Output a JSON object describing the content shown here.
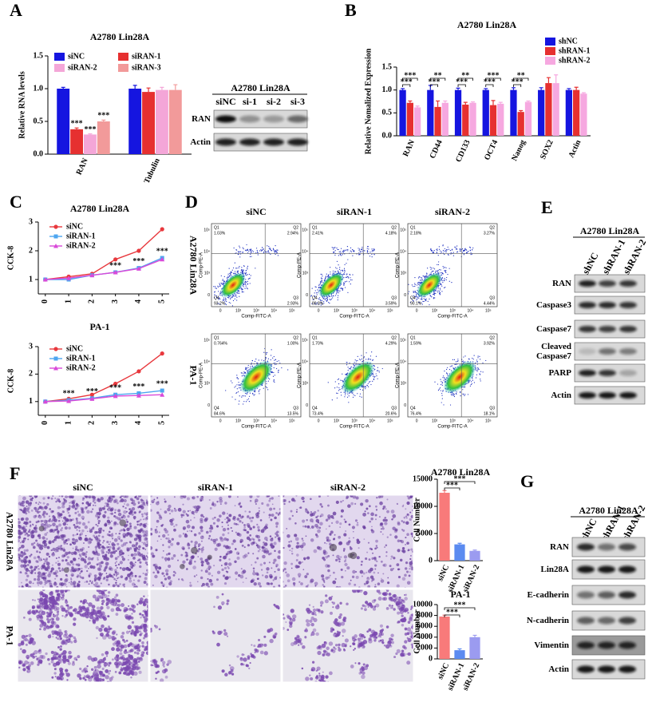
{
  "panel_labels": [
    "A",
    "B",
    "C",
    "D",
    "E",
    "F",
    "G"
  ],
  "chart_data": [
    {
      "type": "bar",
      "title": "A2780 Lin28A",
      "y_label": "Relative RNA levels",
      "categories": [
        "RAN",
        "Tubulin"
      ],
      "series": [
        {
          "name": "siNC",
          "color": "#1515e0",
          "values": [
            1.0,
            1.0
          ],
          "errors": [
            0.02,
            0.05
          ]
        },
        {
          "name": "siRAN-1",
          "color": "#e63030",
          "values": [
            0.38,
            0.95
          ],
          "errors": [
            0.02,
            0.06
          ]
        },
        {
          "name": "siRAN-2",
          "color": "#f4a6d8",
          "values": [
            0.3,
            0.98
          ],
          "errors": [
            0.01,
            0.04
          ]
        },
        {
          "name": "siRAN-3",
          "color": "#f29a9a",
          "values": [
            0.5,
            0.98
          ],
          "errors": [
            0.02,
            0.08
          ]
        }
      ],
      "ylim": [
        0,
        1.5
      ],
      "yticks": [
        {
          "value": 0,
          "label": "0.0"
        },
        0.5,
        {
          "value": 1,
          "label": "1.0"
        },
        1.5
      ],
      "annotations": [
        "***",
        "***",
        "***"
      ]
    },
    {
      "type": "bar",
      "title": "A2780 Lin28A",
      "y_label": "Relative Nomalized Expression",
      "categories": [
        "RAN",
        "CD44",
        "CD133",
        "OCT4",
        "Nanog",
        "SOX2",
        "Actin"
      ],
      "series": [
        {
          "name": "shNC",
          "color": "#1515e0",
          "values": [
            1.0,
            1.0,
            1.0,
            1.0,
            1.0,
            1.0,
            1.0
          ],
          "errors": [
            0.03,
            0.1,
            0.04,
            0.03,
            0.05,
            0.05,
            0.03
          ]
        },
        {
          "name": "shRAN-1",
          "color": "#e63030",
          "values": [
            0.72,
            0.63,
            0.68,
            0.67,
            0.52,
            1.15,
            1.0
          ],
          "errors": [
            0.04,
            0.13,
            0.05,
            0.1,
            0.03,
            0.12,
            0.06
          ]
        },
        {
          "name": "shRAN-2",
          "color": "#f6a8e0",
          "values": [
            0.62,
            0.72,
            0.72,
            0.7,
            0.74,
            1.15,
            0.92
          ],
          "errors": [
            0.03,
            0.04,
            0.02,
            0.03,
            0.02,
            0.18,
            0.02
          ]
        }
      ],
      "ylim": [
        0,
        1.5
      ],
      "yticks": [
        {
          "value": 0,
          "label": "0.0"
        },
        0.5,
        {
          "value": 1,
          "label": "1.0"
        },
        1.5
      ],
      "annotations": [
        "***",
        "***",
        "**",
        "***",
        "**",
        "***",
        "***",
        "***",
        "**",
        "***"
      ]
    },
    {
      "type": "line",
      "title": "A2780 Lin28A",
      "y_label": "CCK-8",
      "x": [
        0,
        1,
        2,
        3,
        4,
        5
      ],
      "xlim": [
        -0.3,
        5.3
      ],
      "xticks": [
        0,
        1,
        2,
        3,
        4,
        5
      ],
      "ylim": [
        0.5,
        3
      ],
      "yticks": [
        1,
        2,
        3
      ],
      "series": [
        {
          "name": "siNC",
          "color": "#e8383d",
          "values": [
            1.0,
            1.1,
            1.2,
            1.7,
            2.0,
            2.75
          ]
        },
        {
          "name": "siRAN-1",
          "color": "#4da6f0",
          "values": [
            1.0,
            1.0,
            1.15,
            1.25,
            1.4,
            1.75
          ]
        },
        {
          "name": "siRAN-2",
          "color": "#d94ad9",
          "values": [
            1.0,
            1.05,
            1.15,
            1.25,
            1.38,
            1.7
          ]
        }
      ],
      "annotations": [
        "***",
        "***",
        "***"
      ]
    },
    {
      "type": "line",
      "title": "PA-1",
      "y_label": "CCK-8",
      "x": [
        0,
        1,
        2,
        3,
        4,
        5
      ],
      "xlim": [
        -0.3,
        5.3
      ],
      "xticks": [
        0,
        1,
        2,
        3,
        4,
        5
      ],
      "ylim": [
        0.5,
        3
      ],
      "yticks": [
        1,
        2,
        3
      ],
      "series": [
        {
          "name": "siNC",
          "color": "#e8383d",
          "values": [
            1.0,
            1.1,
            1.25,
            1.65,
            2.1,
            2.75
          ]
        },
        {
          "name": "siRAN-1",
          "color": "#4da6f0",
          "values": [
            1.0,
            1.05,
            1.12,
            1.25,
            1.3,
            1.4
          ]
        },
        {
          "name": "siRAN-2",
          "color": "#d94ad9",
          "values": [
            1.0,
            1.02,
            1.1,
            1.2,
            1.22,
            1.25
          ]
        }
      ],
      "annotations": [
        "***",
        "***",
        "***",
        "***",
        "***"
      ]
    },
    {
      "type": "bar",
      "title": "A2780 Lin28A",
      "y_label": "Cell Number",
      "categories": [
        "siNC",
        "siRAN-1",
        "siRAN-2"
      ],
      "values": [
        12500,
        3000,
        1800
      ],
      "errors": [
        400,
        200,
        150
      ],
      "colors": [
        "#f87a7a",
        "#5b8bf0",
        "#9b9bf0"
      ],
      "ylim": [
        0,
        15000
      ],
      "yticks": [
        0,
        5000,
        10000,
        15000
      ],
      "annotations": [
        "***",
        "***"
      ]
    },
    {
      "type": "bar",
      "title": "PA-1",
      "y_label": "Cell Number",
      "categories": [
        "siNC",
        "siRAN-1",
        "siRAN-2"
      ],
      "values": [
        7800,
        1600,
        4000
      ],
      "errors": [
        250,
        250,
        350
      ],
      "colors": [
        "#f87a7a",
        "#5b8bf0",
        "#9b9bf0"
      ],
      "ylim": [
        0,
        10000
      ],
      "yticks": [
        0,
        2000,
        4000,
        6000,
        8000,
        10000
      ],
      "annotations": [
        "***",
        "***"
      ]
    }
  ],
  "blot_A": {
    "title": "A2780 Lin28A",
    "lanes": [
      "siNC",
      "si-1",
      "si-2",
      "si-3"
    ],
    "rows": [
      "RAN",
      "Actin"
    ]
  },
  "flow_D": {
    "columns": [
      "siNC",
      "siRAN-1",
      "siRAN-2"
    ],
    "rows": [
      "A2780 Lin28A",
      "PA-1"
    ],
    "x_axis": "Comp-FITC-A",
    "y_axis": "Comp-PE-A",
    "x_ticks": [
      "0",
      "10²",
      "10³",
      "10⁴",
      "10⁵"
    ],
    "y_ticks": [
      "10⁵",
      "10⁴",
      "10³",
      "0"
    ],
    "quadrant_names": [
      "Q1",
      "Q2",
      "Q3",
      "Q4"
    ],
    "percentages": [
      [
        [
          "1.03%",
          "2.94%",
          "2.93%",
          "93.2%"
        ],
        [
          "2.41%",
          "4.18%",
          "3.59%",
          "89.8%"
        ],
        [
          "2.18%",
          "3.27%",
          "4.44%",
          "90.1%"
        ]
      ],
      [
        [
          "0.764%",
          "1.00%",
          "13.5%",
          "84.6%"
        ],
        [
          "1.70%",
          "4.29%",
          "20.6%",
          "73.4%"
        ],
        [
          "1.59%",
          "3.92%",
          "18.1%",
          "76.4%"
        ]
      ]
    ]
  },
  "blot_E": {
    "title": "A2780 Lin28A",
    "lanes": [
      "shNC",
      "shRAN-1",
      "shRAN-2"
    ],
    "rows": [
      "RAN",
      "Caspase3",
      "Caspase7",
      "Cleaved Caspase7",
      "PARP",
      "Actin"
    ]
  },
  "images_F": {
    "columns": [
      "siNC",
      "siRAN-1",
      "siRAN-2"
    ],
    "rows": [
      "A2780 Lin28A",
      "PA-1"
    ]
  },
  "blot_G": {
    "title": "A2780 Lin28A",
    "lanes": [
      "shNC",
      "shRAN-1",
      "shRAN-2"
    ],
    "rows": [
      "RAN",
      "Lin28A",
      "E-cadherin",
      "N-cadherin",
      "Vimentin",
      "Actin"
    ]
  }
}
